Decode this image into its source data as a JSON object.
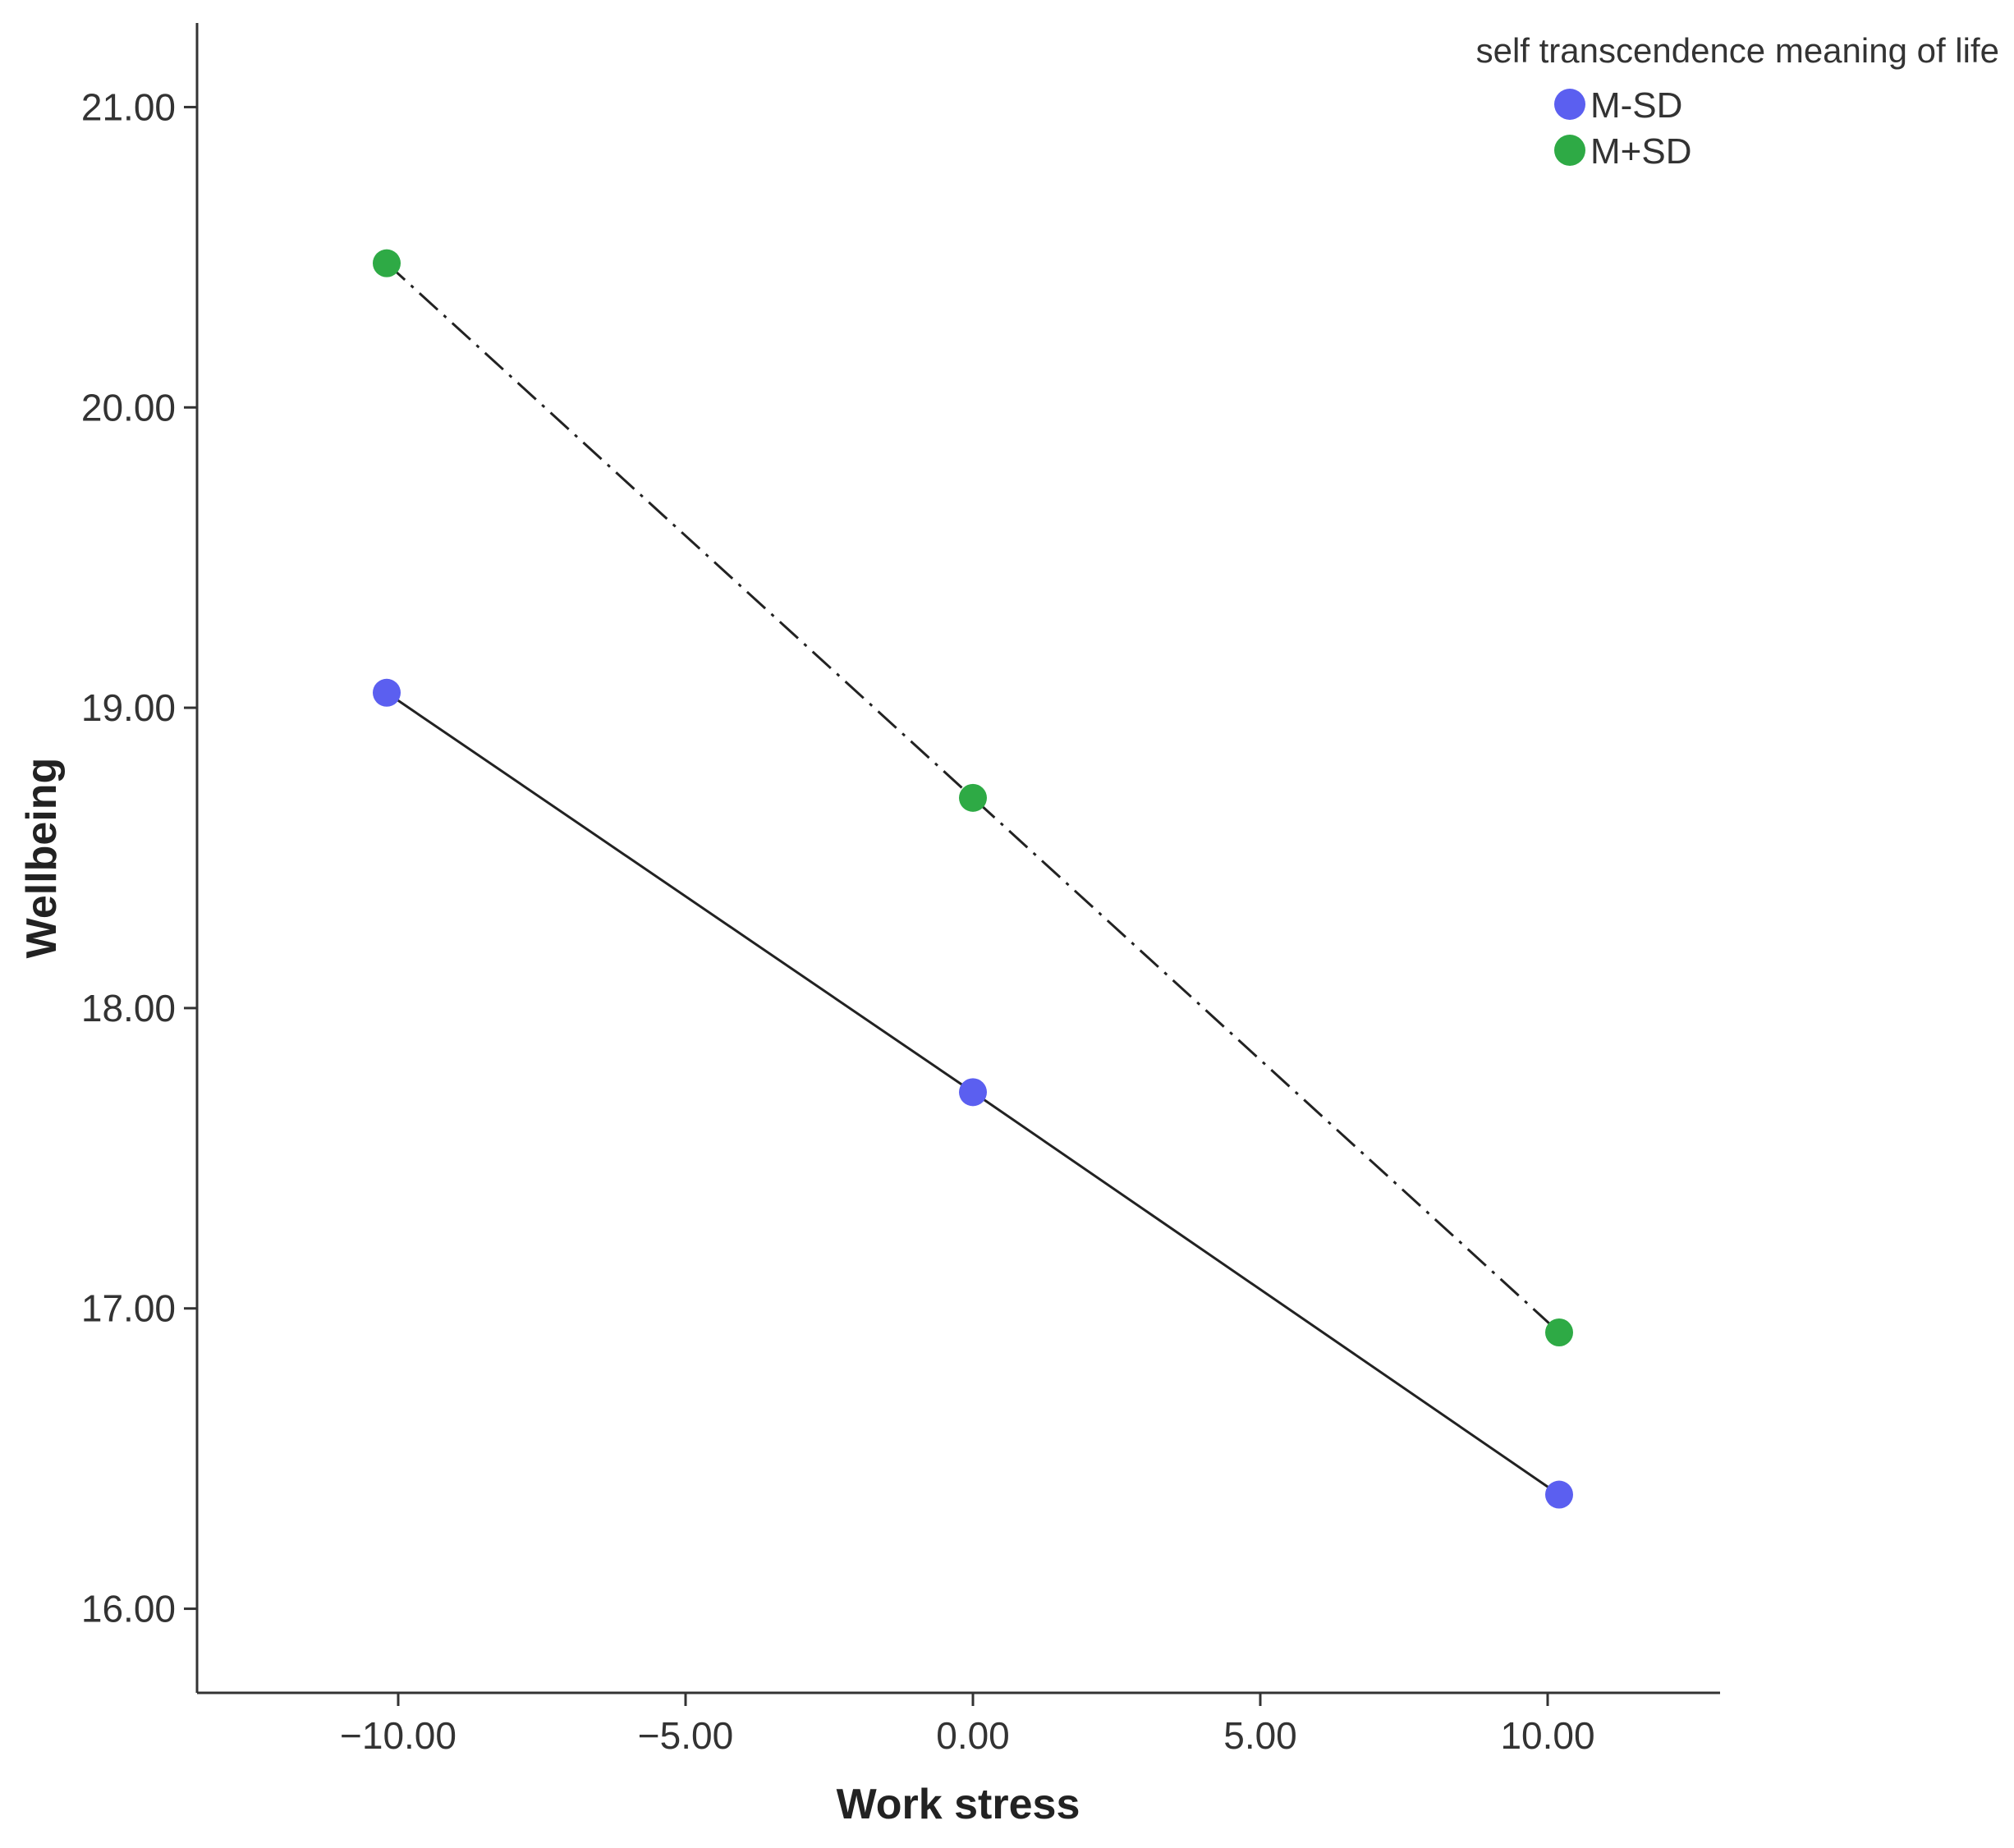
{
  "chart_data": {
    "type": "line",
    "xlabel": "Work stress",
    "ylabel": "Wellbeing",
    "xlim": [
      -13.5,
      13.0
    ],
    "ylim": [
      15.72,
      21.28
    ],
    "x_ticks": [
      -10,
      -5,
      0,
      5,
      10
    ],
    "x_tick_labels": [
      "−10.00",
      "−5.00",
      "0.00",
      "5.00",
      "10.00"
    ],
    "y_ticks": [
      16,
      17,
      18,
      19,
      20,
      21
    ],
    "y_tick_labels": [
      "16.00",
      "17.00",
      "18.00",
      "19.00",
      "20.00",
      "21.00"
    ],
    "grid": false,
    "legend": {
      "title": "self transcendence meaning of life",
      "position": "top-right"
    },
    "series": [
      {
        "name": "M-SD",
        "color": "#5b5ff0",
        "line_color": "#222222",
        "line_style": "solid",
        "x": [
          -10.2,
          0.0,
          10.2
        ],
        "y": [
          19.05,
          17.72,
          16.38
        ]
      },
      {
        "name": "M+SD",
        "color": "#2eaa45",
        "line_color": "#222222",
        "line_style": "dash-dot",
        "x": [
          -10.2,
          0.0,
          10.2
        ],
        "y": [
          20.48,
          18.7,
          16.92
        ]
      }
    ]
  }
}
